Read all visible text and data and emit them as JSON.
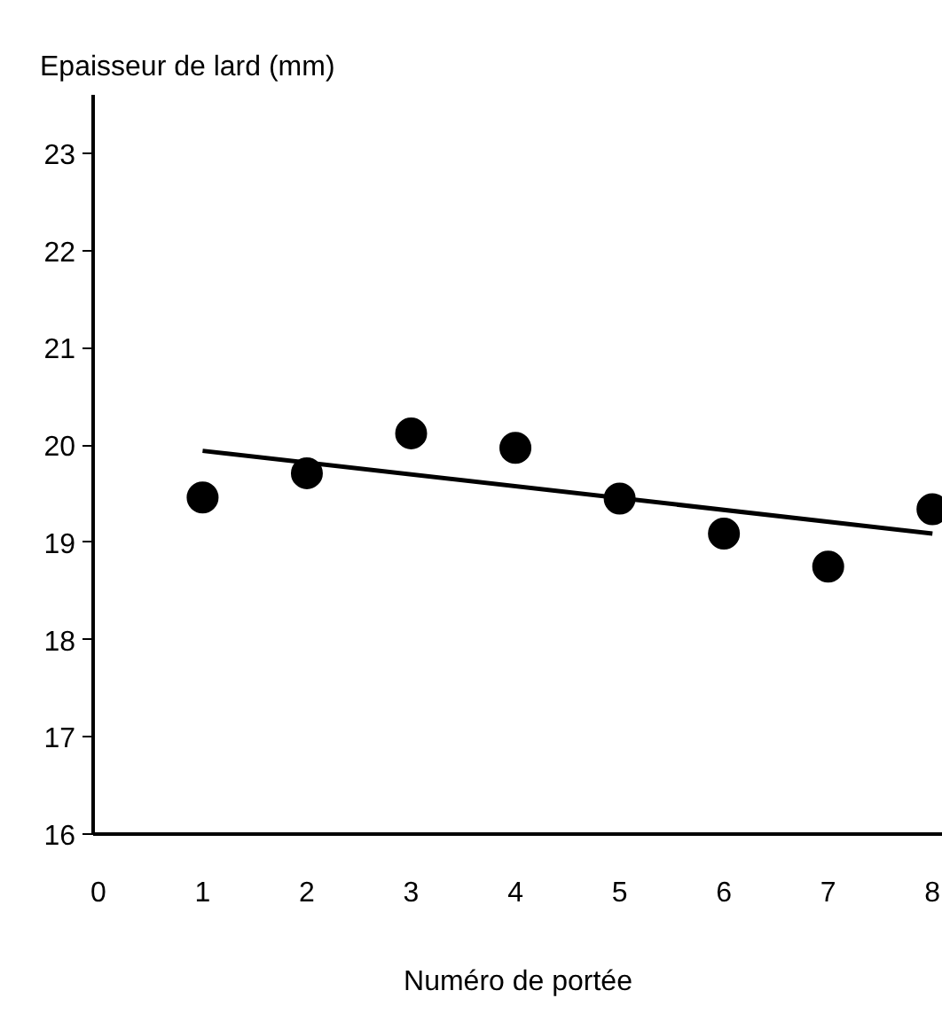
{
  "chart_data": {
    "type": "scatter",
    "xlabel": "Numéro de portée",
    "ylabel": "Epaisseur de lard (mm)",
    "xlim": [
      -0.05,
      8.1
    ],
    "ylim": [
      16,
      23.6
    ],
    "xticks": [
      0,
      1,
      2,
      3,
      4,
      5,
      6,
      7,
      8
    ],
    "yticks": [
      16,
      17,
      18,
      19,
      20,
      21,
      22,
      23
    ],
    "grid": false,
    "marker": "circle",
    "series": [
      {
        "color": "#000000",
        "x": [
          1,
          2,
          3,
          4,
          5,
          6,
          7,
          8
        ],
        "values": [
          19.46,
          19.71,
          20.12,
          19.97,
          19.45,
          19.09,
          18.75,
          19.34
        ]
      },
      {
        "type": "line",
        "marker": "none",
        "color": "#000000",
        "x": [
          1,
          8
        ],
        "values": [
          19.94,
          19.09
        ]
      }
    ]
  }
}
